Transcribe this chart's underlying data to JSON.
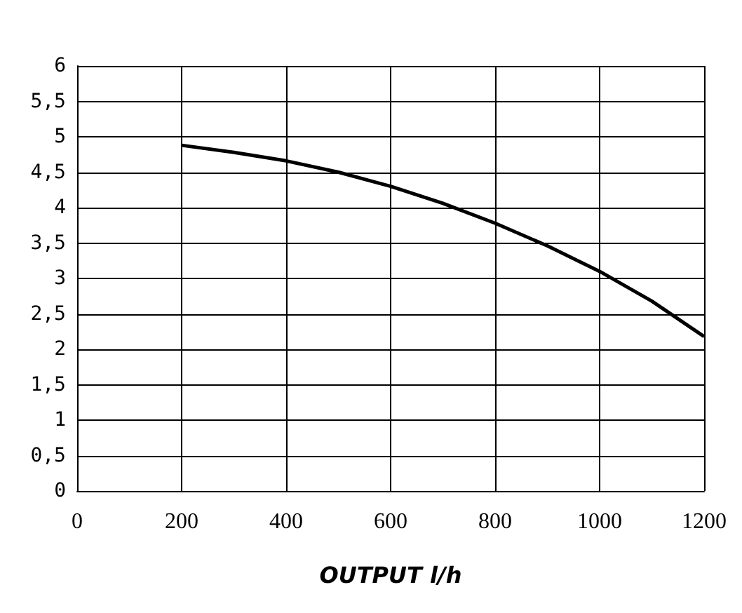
{
  "chart_data": {
    "type": "line",
    "xlabel": "OUTPUT l/h",
    "x": [
      200,
      300,
      400,
      500,
      600,
      700,
      800,
      900,
      1000,
      1100,
      1200
    ],
    "series": [
      {
        "color": "#000000",
        "values": [
          4.88,
          4.78,
          4.66,
          4.5,
          4.3,
          4.06,
          3.78,
          3.46,
          3.1,
          2.68,
          2.18
        ]
      }
    ],
    "xlim": [
      0,
      1200
    ],
    "xticks": [
      0,
      200,
      400,
      600,
      800,
      1000,
      1200
    ],
    "ylim": [
      0,
      6
    ],
    "yticks": [
      0,
      {
        "value": 0.5,
        "label": "0,5"
      },
      1,
      {
        "value": 1.5,
        "label": "1,5"
      },
      2,
      {
        "value": 2.5,
        "label": "2,5"
      },
      3,
      {
        "value": 3.5,
        "label": "3,5"
      },
      4,
      {
        "value": 4.5,
        "label": "4,5"
      },
      5,
      {
        "value": 5.5,
        "label": "5,5"
      },
      6
    ],
    "grid": true,
    "marker": "none",
    "line_style": "solid"
  }
}
